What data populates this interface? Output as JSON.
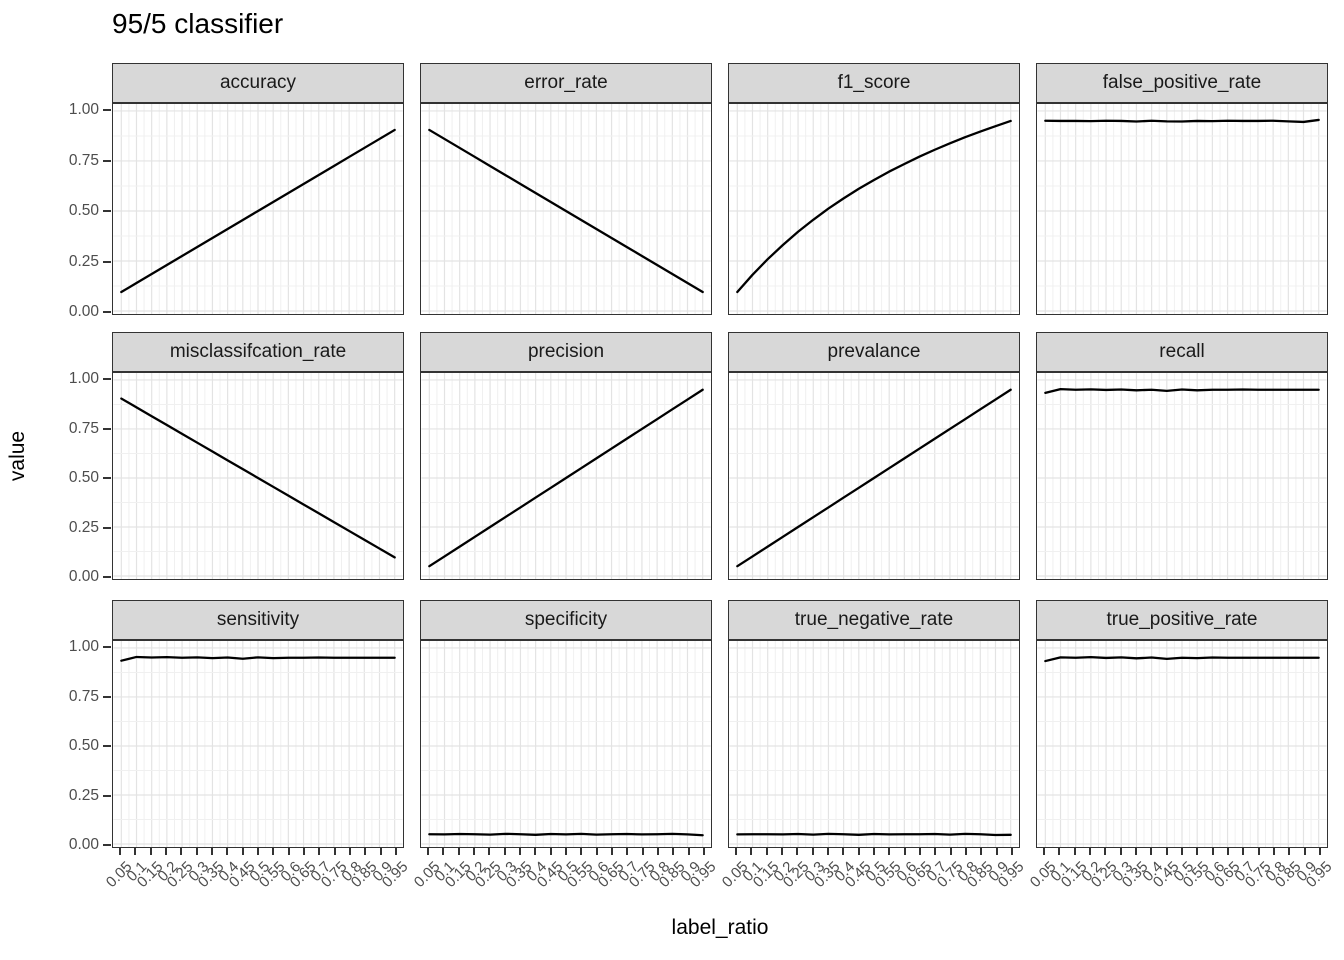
{
  "title": "95/5 classifier",
  "colors": {
    "strip_bg": "#d8d8d8",
    "panel_border": "#333333",
    "grid_major": "#e3e3e3",
    "grid_minor": "#f0f0f0",
    "line": "#000000",
    "tick_text": "#4d4d4d",
    "tick_mark": "#333333"
  },
  "chart_data": {
    "type": "line",
    "title": "95/5 classifier",
    "xlabel": "label_ratio",
    "ylabel": "value",
    "ylim": [
      0,
      1
    ],
    "grid": "on",
    "legend": "none",
    "facet_layout": {
      "rows": 3,
      "cols": 4
    },
    "x": [
      0.05,
      0.1,
      0.15,
      0.2,
      0.25,
      0.3,
      0.35,
      0.4,
      0.45,
      0.5,
      0.55,
      0.6,
      0.65,
      0.7,
      0.75,
      0.8,
      0.85,
      0.9,
      0.95
    ],
    "x_tick_labels": [
      "0.05",
      "0.1",
      "0.15",
      "0.2",
      "0.25",
      "0.3",
      "0.35",
      "0.4",
      "0.45",
      "0.5",
      "0.55",
      "0.6",
      "0.65",
      "0.7",
      "0.75",
      "0.8",
      "0.85",
      "0.9",
      "0.95"
    ],
    "y_ticks": [
      0.0,
      0.25,
      0.5,
      0.75,
      1.0
    ],
    "y_tick_labels": [
      "0.00",
      "0.25",
      "0.50",
      "0.75",
      "1.00"
    ],
    "facets": [
      {
        "name": "accuracy",
        "values": [
          0.095,
          0.14,
          0.185,
          0.23,
          0.275,
          0.32,
          0.365,
          0.41,
          0.455,
          0.5,
          0.545,
          0.59,
          0.635,
          0.68,
          0.725,
          0.77,
          0.815,
          0.86,
          0.905
        ]
      },
      {
        "name": "error_rate",
        "values": [
          0.905,
          0.86,
          0.815,
          0.77,
          0.725,
          0.68,
          0.635,
          0.59,
          0.545,
          0.5,
          0.455,
          0.41,
          0.365,
          0.32,
          0.275,
          0.23,
          0.185,
          0.14,
          0.095
        ]
      },
      {
        "name": "f1_score",
        "values": [
          0.095,
          0.181,
          0.259,
          0.33,
          0.396,
          0.456,
          0.512,
          0.563,
          0.611,
          0.655,
          0.697,
          0.735,
          0.772,
          0.806,
          0.838,
          0.869,
          0.897,
          0.924,
          0.95
        ]
      },
      {
        "name": "false_positive_rate",
        "values": [
          0.951,
          0.95,
          0.95,
          0.949,
          0.951,
          0.95,
          0.947,
          0.951,
          0.948,
          0.947,
          0.95,
          0.949,
          0.951,
          0.95,
          0.95,
          0.951,
          0.948,
          0.945,
          0.955
        ]
      },
      {
        "name": "misclassifcation_rate",
        "values": [
          0.905,
          0.86,
          0.815,
          0.77,
          0.725,
          0.68,
          0.635,
          0.59,
          0.545,
          0.5,
          0.455,
          0.41,
          0.365,
          0.32,
          0.275,
          0.23,
          0.185,
          0.14,
          0.095
        ]
      },
      {
        "name": "precision",
        "values": [
          0.05,
          0.1,
          0.15,
          0.2,
          0.25,
          0.3,
          0.35,
          0.4,
          0.45,
          0.5,
          0.55,
          0.6,
          0.65,
          0.7,
          0.75,
          0.8,
          0.85,
          0.9,
          0.95
        ]
      },
      {
        "name": "prevalance",
        "values": [
          0.05,
          0.1,
          0.15,
          0.2,
          0.25,
          0.3,
          0.35,
          0.4,
          0.45,
          0.5,
          0.55,
          0.6,
          0.65,
          0.7,
          0.75,
          0.8,
          0.85,
          0.9,
          0.95
        ]
      },
      {
        "name": "recall",
        "values": [
          0.934,
          0.953,
          0.95,
          0.952,
          0.949,
          0.951,
          0.947,
          0.95,
          0.944,
          0.951,
          0.947,
          0.95,
          0.95,
          0.951,
          0.95,
          0.95,
          0.95,
          0.95,
          0.95
        ]
      },
      {
        "name": "sensitivity",
        "values": [
          0.935,
          0.954,
          0.951,
          0.953,
          0.95,
          0.952,
          0.948,
          0.951,
          0.945,
          0.952,
          0.948,
          0.95,
          0.95,
          0.951,
          0.95,
          0.95,
          0.95,
          0.95,
          0.95
        ]
      },
      {
        "name": "specificity",
        "values": [
          0.05,
          0.049,
          0.051,
          0.05,
          0.048,
          0.052,
          0.05,
          0.047,
          0.051,
          0.049,
          0.052,
          0.048,
          0.05,
          0.051,
          0.049,
          0.05,
          0.052,
          0.049,
          0.045
        ]
      },
      {
        "name": "true_negative_rate",
        "values": [
          0.049,
          0.05,
          0.05,
          0.049,
          0.051,
          0.048,
          0.052,
          0.05,
          0.047,
          0.051,
          0.049,
          0.05,
          0.05,
          0.051,
          0.048,
          0.052,
          0.05,
          0.046,
          0.047
        ]
      },
      {
        "name": "true_positive_rate",
        "values": [
          0.933,
          0.952,
          0.95,
          0.953,
          0.949,
          0.952,
          0.947,
          0.951,
          0.944,
          0.95,
          0.948,
          0.951,
          0.95,
          0.95,
          0.95,
          0.95,
          0.95,
          0.95,
          0.95
        ]
      }
    ]
  }
}
